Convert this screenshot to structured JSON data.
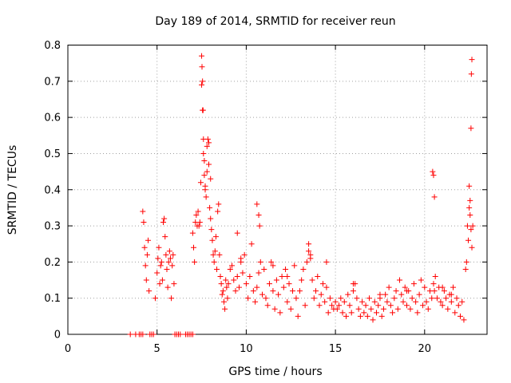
{
  "chart_data": {
    "type": "scatter",
    "title": "Day 189 of 2014, SRMTID for receiver reun",
    "xlabel": "GPS time / hours",
    "ylabel": "SRMTID / TECUs",
    "xlim": [
      0,
      23.5
    ],
    "ylim": [
      0,
      0.8
    ],
    "x_ticks": [
      0,
      5,
      10,
      15,
      20
    ],
    "x_tick_labels": [
      "0",
      "5",
      "10",
      "15",
      "20"
    ],
    "y_ticks": [
      0,
      0.1,
      0.2,
      0.3,
      0.4,
      0.5,
      0.6,
      0.7,
      0.8
    ],
    "y_tick_labels": [
      "0",
      "0.1",
      "0.2",
      "0.3",
      "0.4",
      "0.5",
      "0.6",
      "0.7",
      "0.8"
    ],
    "grid": true,
    "marker": "plus",
    "color": "#ff0000",
    "series": [
      {
        "name": "SRMTID",
        "x": [
          3.5,
          3.8,
          4.0,
          4.1,
          4.2,
          4.6,
          4.7,
          4.8,
          6.0,
          6.1,
          6.2,
          6.3,
          6.6,
          6.7,
          6.8,
          6.9,
          7.0,
          4.2,
          4.25,
          4.3,
          4.35,
          4.4,
          4.45,
          4.5,
          4.55,
          4.9,
          5.0,
          5.05,
          5.1,
          5.15,
          5.2,
          5.25,
          5.3,
          5.35,
          5.4,
          5.45,
          5.5,
          5.55,
          5.6,
          5.65,
          5.7,
          5.75,
          5.8,
          5.85,
          5.9,
          5.95,
          7.0,
          7.05,
          7.1,
          7.15,
          7.2,
          7.25,
          7.3,
          7.35,
          7.4,
          7.45,
          7.5,
          7.52,
          7.55,
          7.58,
          7.6,
          7.65,
          7.7,
          7.75,
          7.8,
          7.85,
          7.9,
          7.95,
          8.0,
          8.05,
          8.1,
          8.15,
          8.2,
          8.25,
          8.3,
          8.35,
          8.4,
          8.45,
          8.5,
          8.55,
          8.6,
          8.65,
          8.7,
          8.75,
          8.8,
          8.85,
          8.9,
          8.95,
          9.0,
          9.1,
          9.2,
          9.3,
          9.4,
          9.5,
          9.6,
          9.7,
          9.8,
          9.9,
          10.0,
          10.1,
          10.2,
          10.3,
          10.4,
          10.5,
          10.6,
          10.7,
          10.8,
          10.9,
          11.0,
          11.1,
          11.2,
          11.3,
          11.4,
          11.5,
          11.6,
          11.7,
          11.8,
          11.9,
          12.0,
          12.1,
          12.2,
          12.3,
          12.4,
          12.5,
          12.6,
          12.7,
          12.8,
          12.9,
          13.0,
          13.1,
          13.2,
          13.3,
          13.4,
          13.5,
          13.6,
          13.7,
          13.8,
          13.9,
          14.0,
          14.1,
          14.2,
          14.3,
          14.4,
          14.5,
          14.6,
          14.7,
          14.8,
          14.9,
          15.0,
          15.1,
          15.2,
          15.3,
          15.4,
          15.5,
          15.6,
          15.7,
          15.8,
          15.9,
          16.0,
          16.1,
          16.2,
          16.3,
          16.4,
          16.5,
          16.6,
          16.7,
          16.8,
          16.9,
          17.0,
          17.1,
          17.2,
          17.3,
          17.4,
          17.5,
          17.6,
          17.7,
          17.8,
          17.9,
          18.0,
          18.1,
          18.2,
          18.3,
          18.4,
          18.5,
          18.6,
          18.7,
          18.8,
          18.9,
          19.0,
          19.1,
          19.2,
          19.3,
          19.4,
          19.5,
          19.6,
          19.7,
          19.8,
          19.9,
          20.0,
          20.1,
          20.2,
          20.3,
          20.4,
          20.5,
          20.55,
          20.6,
          20.7,
          20.8,
          20.9,
          21.0,
          21.1,
          21.2,
          21.3,
          21.4,
          21.5,
          21.6,
          21.7,
          21.8,
          21.9,
          22.0,
          22.1,
          22.2,
          22.3,
          22.35,
          22.4,
          22.45,
          22.5,
          22.55,
          22.6,
          22.65,
          22.7,
          10.6,
          10.7,
          10.75,
          13.5,
          13.6,
          20.45,
          20.5,
          20.55,
          22.5,
          22.55,
          22.6,
          22.62,
          22.65,
          7.5,
          7.55,
          7.6,
          7.65,
          7.7,
          7.8,
          7.9,
          8.0,
          9.5,
          9.7,
          11.5,
          12.3,
          14.5,
          16.0,
          17.5,
          19.0,
          21.0,
          21.5
        ],
        "y": [
          0,
          0,
          0,
          0,
          0,
          0,
          0,
          0,
          0,
          0,
          0,
          0,
          0,
          0,
          0,
          0,
          0,
          0.34,
          0.31,
          0.24,
          0.19,
          0.15,
          0.22,
          0.26,
          0.12,
          0.1,
          0.17,
          0.21,
          0.24,
          0.14,
          0.19,
          0.2,
          0.15,
          0.31,
          0.32,
          0.27,
          0.22,
          0.18,
          0.13,
          0.2,
          0.23,
          0.21,
          0.1,
          0.19,
          0.22,
          0.14,
          0.28,
          0.24,
          0.2,
          0.31,
          0.33,
          0.3,
          0.34,
          0.3,
          0.31,
          0.42,
          0.77,
          0.74,
          0.7,
          0.62,
          0.54,
          0.48,
          0.41,
          0.38,
          0.45,
          0.54,
          0.53,
          0.35,
          0.32,
          0.29,
          0.26,
          0.22,
          0.2,
          0.23,
          0.27,
          0.18,
          0.34,
          0.36,
          0.22,
          0.16,
          0.14,
          0.11,
          0.12,
          0.09,
          0.07,
          0.15,
          0.13,
          0.1,
          0.14,
          0.18,
          0.19,
          0.15,
          0.12,
          0.16,
          0.13,
          0.2,
          0.17,
          0.22,
          0.14,
          0.1,
          0.16,
          0.25,
          0.12,
          0.09,
          0.13,
          0.17,
          0.2,
          0.11,
          0.18,
          0.1,
          0.08,
          0.14,
          0.2,
          0.12,
          0.07,
          0.15,
          0.11,
          0.06,
          0.16,
          0.13,
          0.18,
          0.09,
          0.14,
          0.07,
          0.12,
          0.19,
          0.1,
          0.05,
          0.12,
          0.15,
          0.18,
          0.08,
          0.2,
          0.23,
          0.21,
          0.15,
          0.1,
          0.12,
          0.16,
          0.08,
          0.11,
          0.14,
          0.09,
          0.13,
          0.06,
          0.1,
          0.08,
          0.07,
          0.09,
          0.07,
          0.08,
          0.1,
          0.06,
          0.09,
          0.05,
          0.11,
          0.08,
          0.06,
          0.12,
          0.14,
          0.1,
          0.07,
          0.05,
          0.09,
          0.06,
          0.08,
          0.05,
          0.1,
          0.07,
          0.04,
          0.09,
          0.06,
          0.08,
          0.1,
          0.05,
          0.07,
          0.11,
          0.09,
          0.13,
          0.08,
          0.06,
          0.1,
          0.12,
          0.07,
          0.15,
          0.11,
          0.09,
          0.13,
          0.08,
          0.12,
          0.07,
          0.1,
          0.14,
          0.09,
          0.06,
          0.11,
          0.15,
          0.08,
          0.13,
          0.09,
          0.07,
          0.12,
          0.1,
          0.14,
          0.12,
          0.16,
          0.1,
          0.13,
          0.09,
          0.08,
          0.12,
          0.1,
          0.07,
          0.11,
          0.09,
          0.13,
          0.06,
          0.1,
          0.08,
          0.05,
          0.09,
          0.04,
          0.18,
          0.2,
          0.3,
          0.26,
          0.35,
          0.33,
          0.29,
          0.24,
          0.3,
          0.36,
          0.33,
          0.3,
          0.25,
          0.22,
          0.45,
          0.44,
          0.38,
          0.41,
          0.37,
          0.57,
          0.72,
          0.76,
          0.69,
          0.62,
          0.5,
          0.44,
          0.4,
          0.52,
          0.47,
          0.43,
          0.28,
          0.21,
          0.19,
          0.16,
          0.2,
          0.14,
          0.11,
          0.12,
          0.13,
          0.11
        ]
      }
    ]
  }
}
